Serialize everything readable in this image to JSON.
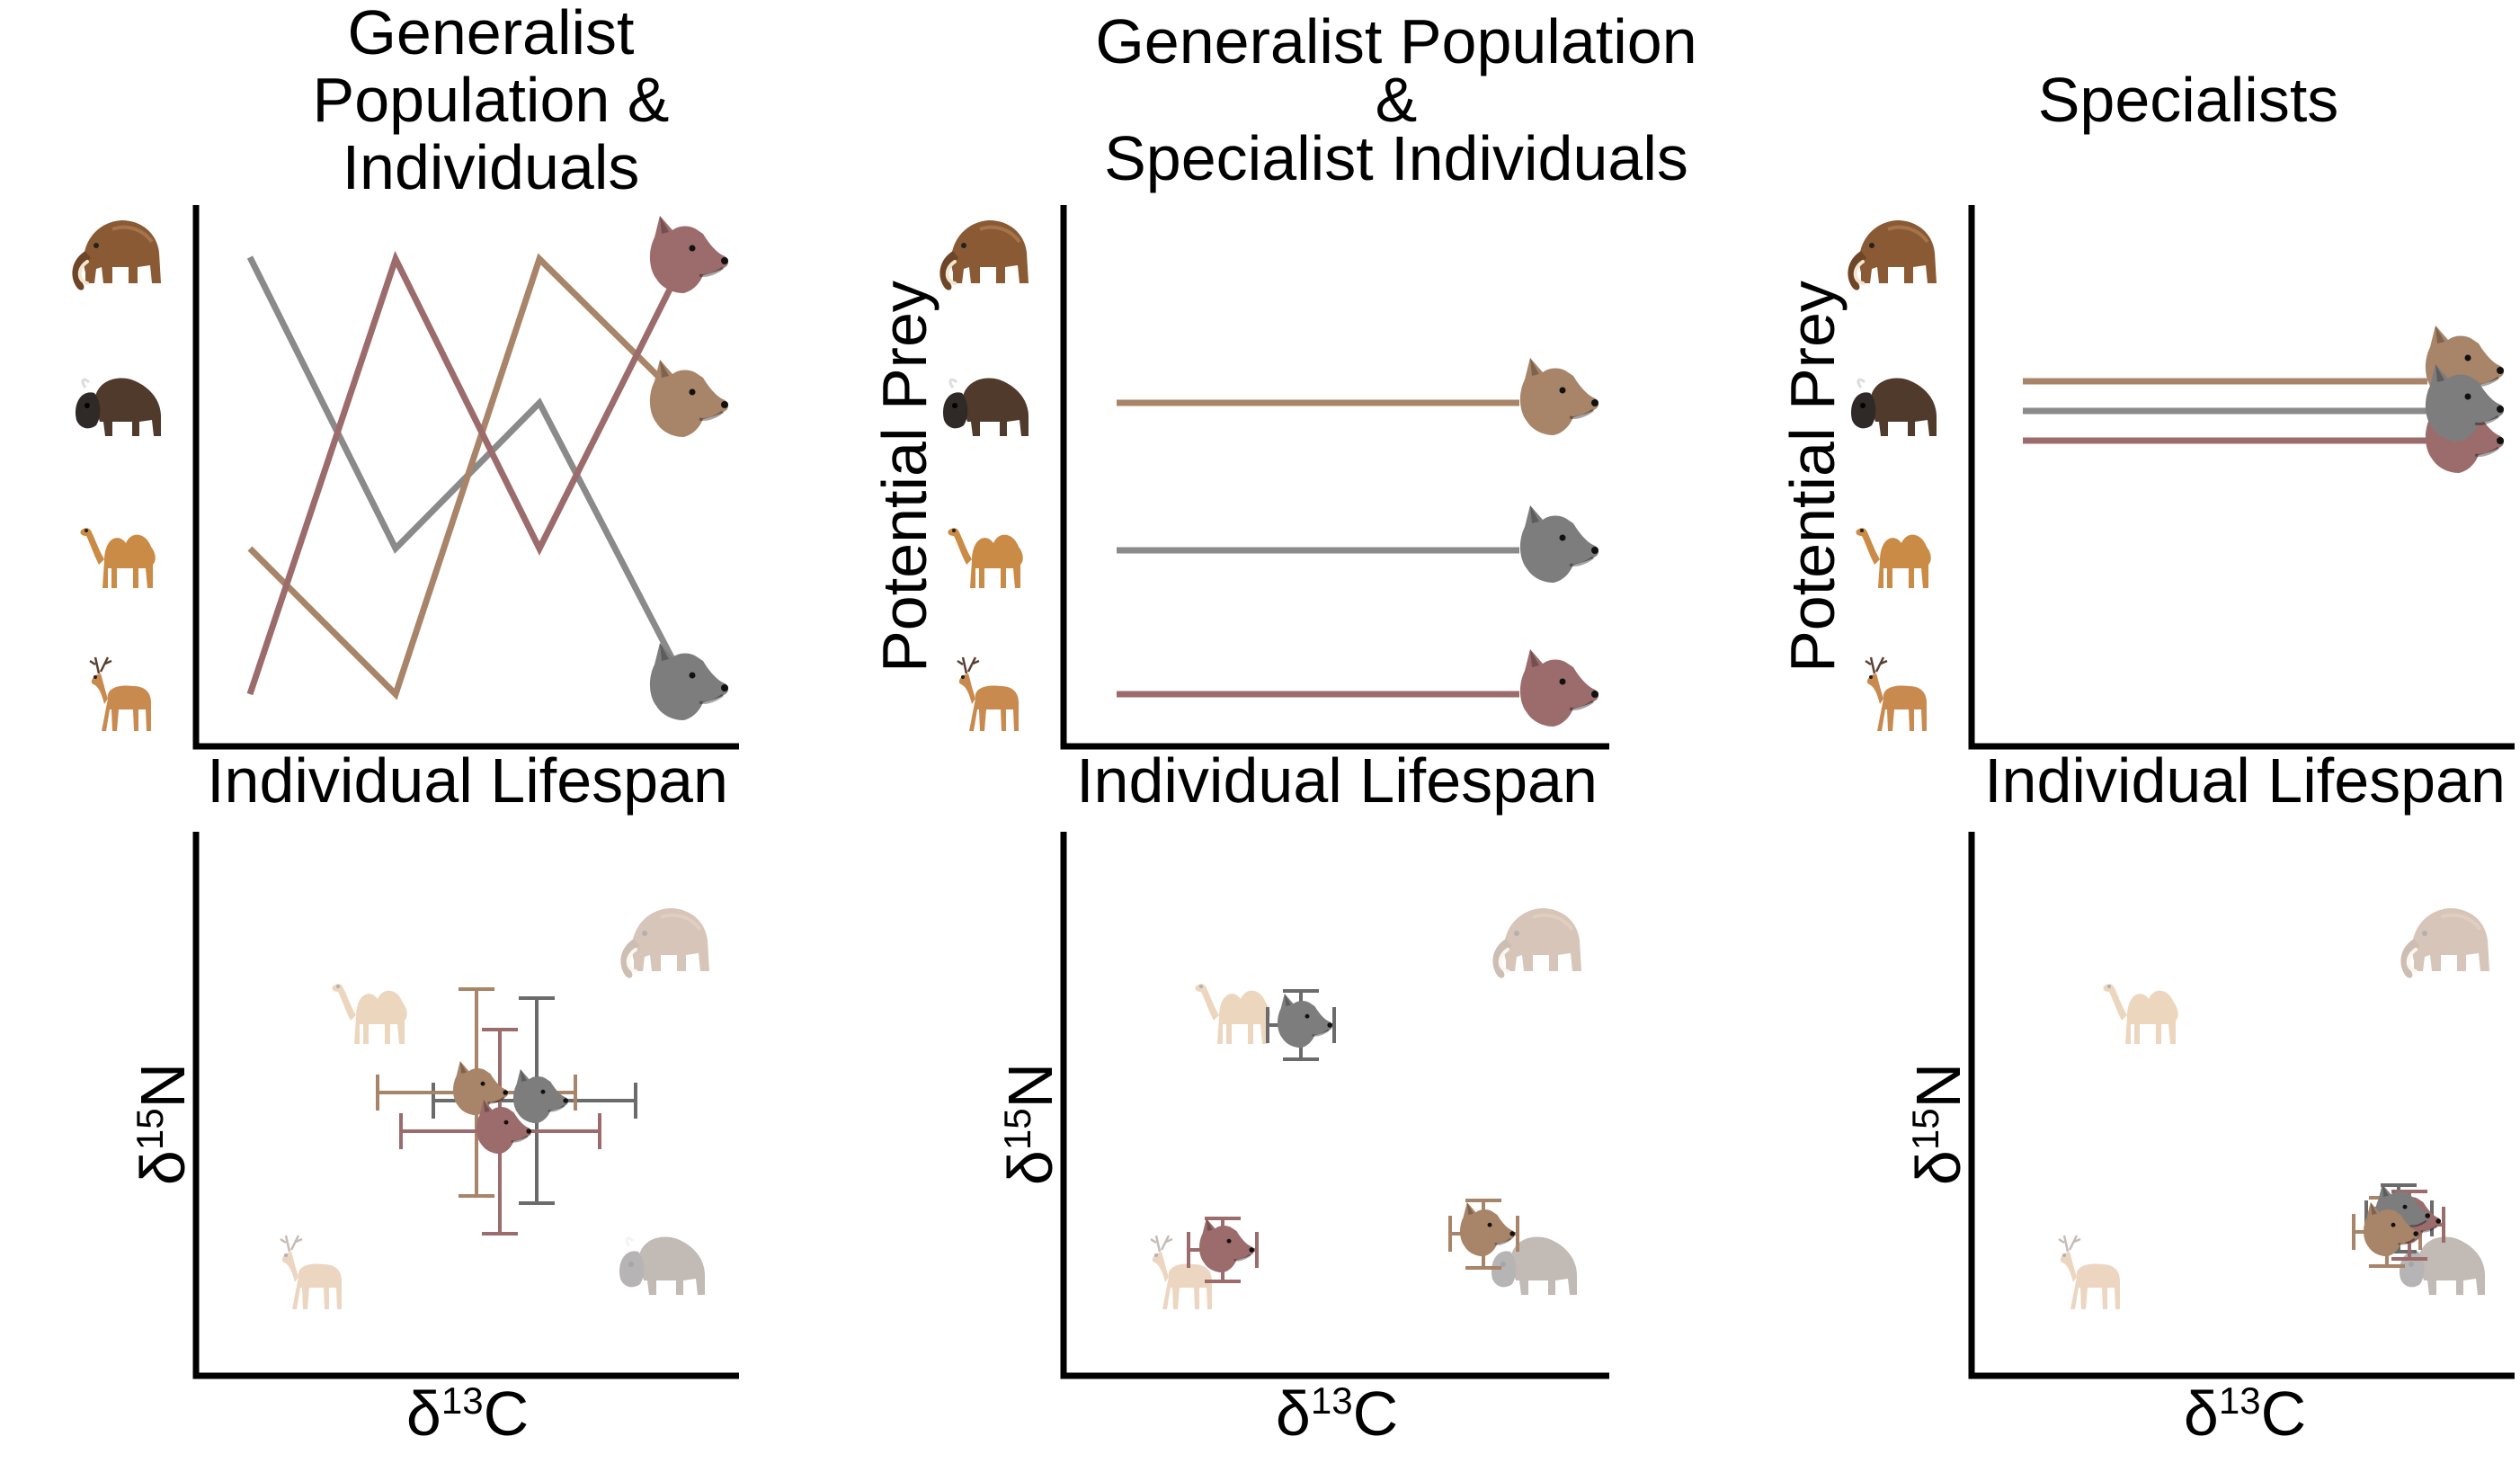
{
  "panels": [
    {
      "title_lines": [
        "Generalist",
        "Population &",
        "Individuals"
      ],
      "top_ylabel": "",
      "top_xlabel": "Individual Lifespan",
      "bottom_xlabel": {
        "symbol": "δ",
        "sup": "13",
        "element": "C"
      },
      "bottom_ylabel": {
        "symbol": "δ",
        "sup": "15",
        "element": "N"
      }
    },
    {
      "title_lines": [
        "Generalist Population",
        "&",
        "Specialist Individuals"
      ],
      "top_ylabel": "Potential Prey",
      "top_xlabel": "Individual Lifespan",
      "bottom_xlabel": {
        "symbol": "δ",
        "sup": "13",
        "element": "C"
      },
      "bottom_ylabel": {
        "symbol": "δ",
        "sup": "15",
        "element": "N"
      }
    },
    {
      "title_lines": [
        "Specialists"
      ],
      "top_ylabel": "Potential Prey",
      "top_xlabel": "Individual Lifespan",
      "bottom_xlabel": {
        "symbol": "δ",
        "sup": "13",
        "element": "C"
      },
      "bottom_ylabel": {
        "symbol": "δ",
        "sup": "15",
        "element": "N"
      }
    }
  ],
  "prey_order_top_to_bottom": [
    "mammoth",
    "bison",
    "camel",
    "deer"
  ],
  "predator_colors": {
    "red": "#9c6b6b",
    "brown": "#a88468",
    "gray": "#8a8a8a"
  },
  "icons": [
    "mammoth-icon",
    "bison-icon",
    "camel-icon",
    "deer-icon",
    "wolf-head-icon"
  ]
}
